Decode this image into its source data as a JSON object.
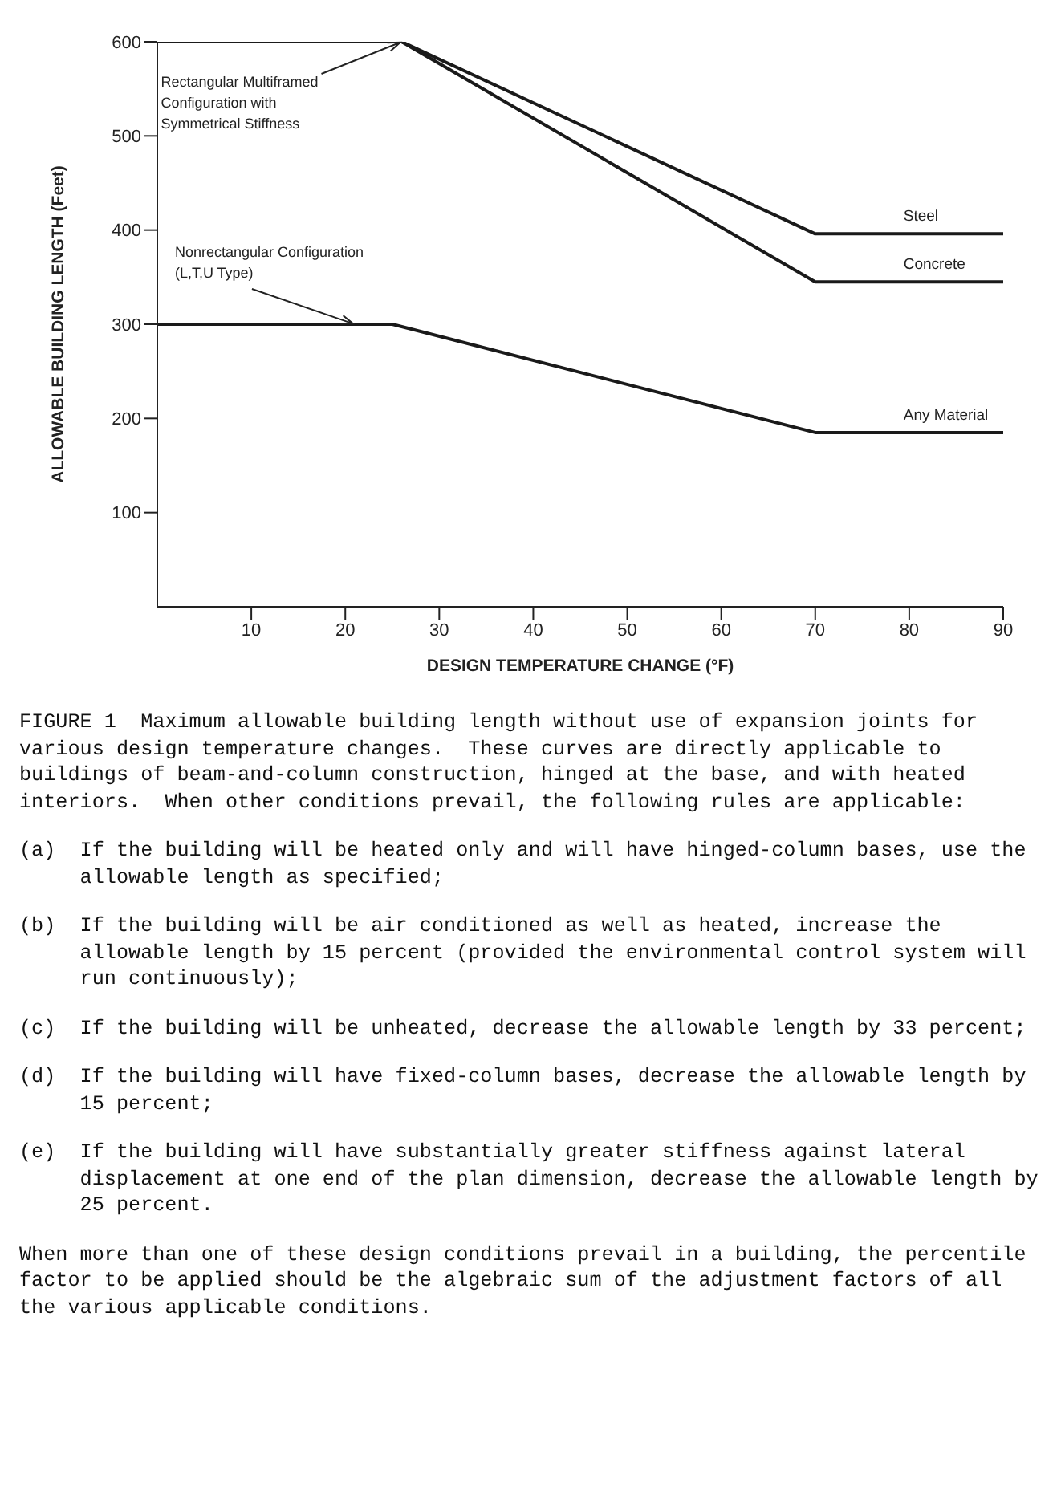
{
  "chart_data": {
    "type": "line",
    "xlabel": "DESIGN TEMPERATURE CHANGE (°F)",
    "ylabel": "ALLOWABLE BUILDING LENGTH (Feet)",
    "xlim": [
      0,
      90
    ],
    "xticks": [
      10,
      20,
      30,
      40,
      50,
      60,
      70,
      80,
      90
    ],
    "ylim": [
      0,
      600
    ],
    "yticks": [
      100,
      200,
      300,
      400,
      500,
      600
    ],
    "grid": false,
    "legend": false,
    "marker": "none",
    "line_style": "solid",
    "series": [
      {
        "name": "Steel",
        "color": "#1a1a1a",
        "x": [
          0,
          26,
          70,
          90
        ],
        "values": [
          600,
          600,
          396,
          396
        ]
      },
      {
        "name": "Concrete",
        "color": "#1a1a1a",
        "x": [
          0,
          26,
          70,
          90
        ],
        "values": [
          600,
          600,
          345,
          345
        ]
      },
      {
        "name": "Any Material",
        "color": "#1a1a1a",
        "x": [
          0,
          25,
          70,
          90
        ],
        "values": [
          300,
          300,
          185,
          185
        ]
      }
    ],
    "annotations": [
      {
        "text": "Rectangular Multiframed Configuration with Symmetrical Stiffness",
        "x": 26,
        "y": 600
      },
      {
        "text": "Nonrectangular Configuration (L,T,U Type)",
        "x": 21,
        "y": 300
      },
      "FIGURE 1  Maximum allowable building length without use of expansion joints for various design temperature changes.  These curves are directly applicable to buildings of beam-and-column construction, hinged at the base, and with heated interiors.  When other conditions prevail, the following rules are applicable:",
      "(a)  If the building will be heated only and will have hinged-column bases, use the allowable length as specified;",
      "(b)  If the building will be air conditioned as well as heated, increase the allowable length by 15 percent (provided the environmental control system will run continuously);",
      "(c)  If the building will be unheated, decrease the allowable length by 33 percent;",
      "(d)  If the building will have fixed-column bases, decrease the allowable length by 15 percent;",
      "(e)  If the building will have substantially greater stiffness against lateral displacement at one end of the plan dimension, decrease the allowable length by 25 percent.",
      "When more than one of these design conditions prevail in a building, the percentile factor to be applied should be the algebraic sum of the adjustment factors of all the various applicable conditions."
    ]
  }
}
